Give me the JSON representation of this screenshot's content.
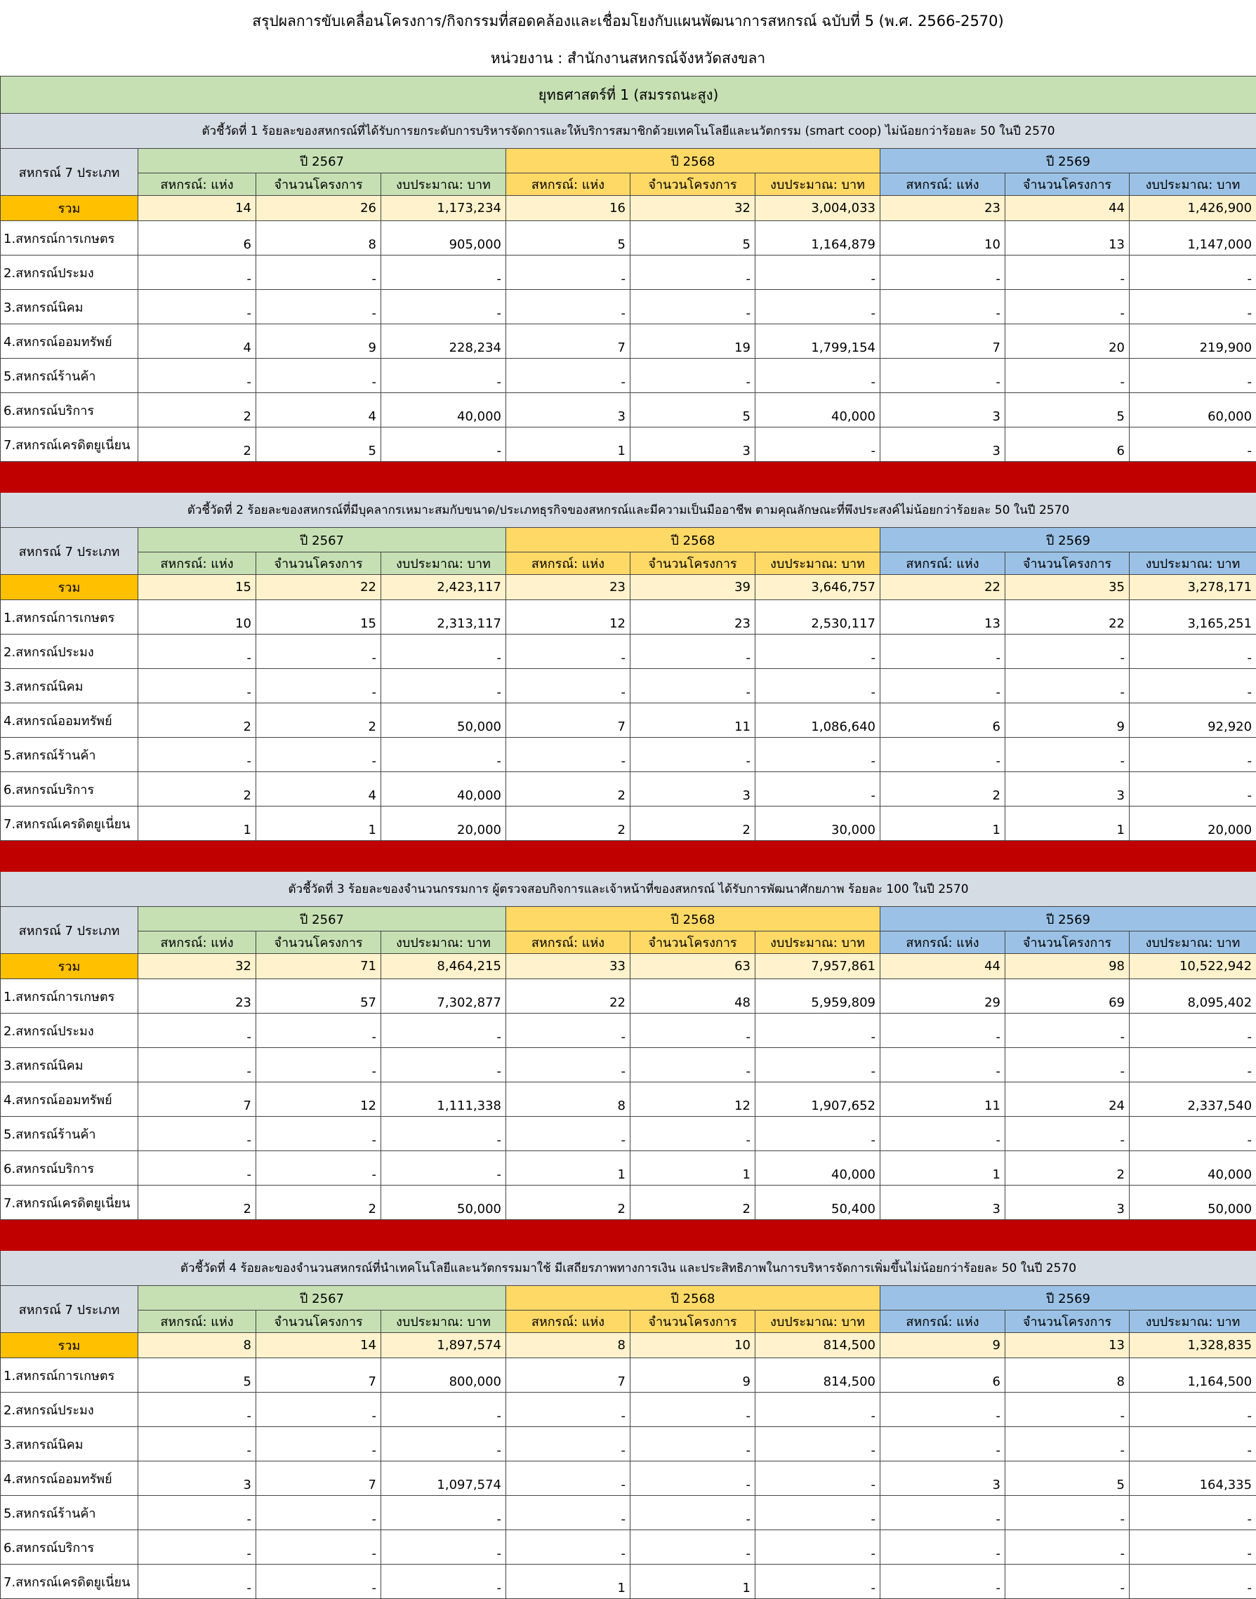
{
  "title": "สรุปผลการขับเคลื่อนโครงการ/กิจกรรมที่สอดคล้องและเชื่อมโยงกับแผนพัฒนาการสหกรณ์ ฉบับที่ 5 (พ.ศ. 2566-2570)",
  "unit": "หน่วยงาน : สำนักงานสหกรณ์จังหวัดสงขลา",
  "strategy": "ยุทธศาสตร์ที่ 1 (สมรรถนะสูง)",
  "sections": [
    {
      "indicator": "ตัวชี้วัดที่ 1 ร้อยละของสหกรณ์ที่ได้รับการยกระดับการบริหารจัดการและให้บริการสมาชิกด้วยเทคโนโลยีและนวัตกรรม (smart coop) ไม่น้อยกว่าร้อยละ 50 ในปี 2570",
      "row_header": "สหกรณ์ 7 ประเภท",
      "years": [
        "ปี 2567",
        "ปี 2568",
        "ปี 2569"
      ],
      "columns": [
        "สหกรณ์: แห่ง",
        "จำนวนโครงการ",
        "งบประมาณ: บาท",
        "สหกรณ์: แห่ง",
        "จำนวนโครงการ",
        "งบประมาณ: บาท",
        "สหกรณ์: แห่ง",
        "จำนวนโครงการ",
        "งบประมาณ: บาท"
      ],
      "rows": [
        [
          "รวม",
          "14",
          "26",
          "1,173,234",
          "16",
          "32",
          "3,004,033",
          "23",
          "44",
          "1,426,900"
        ],
        [
          "1.สหกรณ์การเกษตร",
          "6",
          "8",
          "905,000",
          "5",
          "5",
          "1,164,879",
          "10",
          "13",
          "1,147,000"
        ],
        [
          "2.สหกรณ์ประมง",
          "-",
          "-",
          "-",
          "-",
          "-",
          "-",
          "-",
          "-",
          "-"
        ],
        [
          "3.สหกรณ์นิคม",
          "-",
          "-",
          "-",
          "-",
          "-",
          "-",
          "-",
          "-",
          "-"
        ],
        [
          "4.สหกรณ์ออมทรัพย์",
          "4",
          "9",
          "228,234",
          "7",
          "19",
          "1,799,154",
          "7",
          "20",
          "219,900"
        ],
        [
          "5.สหกรณ์ร้านค้า",
          "-",
          "-",
          "-",
          "-",
          "-",
          "-",
          "-",
          "-",
          "-"
        ],
        [
          "6.สหกรณ์บริการ",
          "2",
          "4",
          "40,000",
          "3",
          "5",
          "40,000",
          "3",
          "5",
          "60,000"
        ],
        [
          "7.สหกรณ์เครดิตยูเนี่ยน",
          "2",
          "5",
          "-",
          "1",
          "3",
          "-",
          "3",
          "6",
          "-"
        ]
      ]
    },
    {
      "indicator": "ตัวชี้วัดที่ 2 ร้อยละของสหกรณ์ที่มีบุคลากรเหมาะสมกับขนาด/ประเภทธุรกิจของสหกรณ์และมีความเป็นมืออาชีพ ตามคุณลักษณะที่พึงประสงค์ไม่น้อยกว่าร้อยละ 50 ในปี 2570",
      "row_header": "สหกรณ์ 7 ประเภท",
      "years": [
        "ปี 2567",
        "ปี 2568",
        "ปี 2569"
      ],
      "columns": [
        "สหกรณ์: แห่ง",
        "จำนวนโครงการ",
        "งบประมาณ: บาท",
        "สหกรณ์: แห่ง",
        "จำนวนโครงการ",
        "งบประมาณ: บาท",
        "สหกรณ์: แห่ง",
        "จำนวนโครงการ",
        "งบประมาณ: บาท"
      ],
      "rows": [
        [
          "รวม",
          "15",
          "22",
          "2,423,117",
          "23",
          "39",
          "3,646,757",
          "22",
          "35",
          "3,278,171"
        ],
        [
          "1.สหกรณ์การเกษตร",
          "10",
          "15",
          "2,313,117",
          "12",
          "23",
          "2,530,117",
          "13",
          "22",
          "3,165,251"
        ],
        [
          "2.สหกรณ์ประมง",
          "-",
          "-",
          "-",
          "-",
          "-",
          "-",
          "-",
          "-",
          "-"
        ],
        [
          "3.สหกรณ์นิคม",
          "-",
          "-",
          "-",
          "-",
          "-",
          "-",
          "-",
          "-",
          "-"
        ],
        [
          "4.สหกรณ์ออมทรัพย์",
          "2",
          "2",
          "50,000",
          "7",
          "11",
          "1,086,640",
          "6",
          "9",
          "92,920"
        ],
        [
          "5.สหกรณ์ร้านค้า",
          "-",
          "-",
          "-",
          "-",
          "-",
          "-",
          "-",
          "-",
          "-"
        ],
        [
          "6.สหกรณ์บริการ",
          "2",
          "4",
          "40,000",
          "2",
          "3",
          "-",
          "2",
          "3",
          "-"
        ],
        [
          "7.สหกรณ์เครดิตยูเนี่ยน",
          "1",
          "1",
          "20,000",
          "2",
          "2",
          "30,000",
          "1",
          "1",
          "20,000"
        ]
      ]
    },
    {
      "indicator": "ตัวชี้วัดที่ 3 ร้อยละของจำนวนกรรมการ ผู้ตรวจสอบกิจการและเจ้าหน้าที่ของสหกรณ์ ได้รับการพัฒนาศักยภาพ ร้อยละ 100 ในปี 2570",
      "row_header": "สหกรณ์ 7 ประเภท",
      "years": [
        "ปี 2567",
        "ปี 2568",
        "ปี 2569"
      ],
      "columns": [
        "สหกรณ์: แห่ง",
        "จำนวนโครงการ",
        "งบประมาณ: บาท",
        "สหกรณ์: แห่ง",
        "จำนวนโครงการ",
        "งบประมาณ: บาท",
        "สหกรณ์: แห่ง",
        "จำนวนโครงการ",
        "งบประมาณ: บาท"
      ],
      "rows": [
        [
          "รวม",
          "32",
          "71",
          "8,464,215",
          "33",
          "63",
          "7,957,861",
          "44",
          "98",
          "10,522,942"
        ],
        [
          "1.สหกรณ์การเกษตร",
          "23",
          "57",
          "7,302,877",
          "22",
          "48",
          "5,959,809",
          "29",
          "69",
          "8,095,402"
        ],
        [
          "2.สหกรณ์ประมง",
          "-",
          "-",
          "-",
          "-",
          "-",
          "-",
          "-",
          "-",
          "-"
        ],
        [
          "3.สหกรณ์นิคม",
          "-",
          "-",
          "-",
          "-",
          "-",
          "-",
          "-",
          "-",
          "-"
        ],
        [
          "4.สหกรณ์ออมทรัพย์",
          "7",
          "12",
          "1,111,338",
          "8",
          "12",
          "1,907,652",
          "11",
          "24",
          "2,337,540"
        ],
        [
          "5.สหกรณ์ร้านค้า",
          "-",
          "-",
          "-",
          "-",
          "-",
          "-",
          "-",
          "-",
          "-"
        ],
        [
          "6.สหกรณ์บริการ",
          "-",
          "-",
          "-",
          "1",
          "1",
          "40,000",
          "1",
          "2",
          "40,000"
        ],
        [
          "7.สหกรณ์เครดิตยูเนี่ยน",
          "2",
          "2",
          "50,000",
          "2",
          "2",
          "50,400",
          "3",
          "3",
          "50,000"
        ]
      ]
    },
    {
      "indicator": "ตัวชี้วัดที่ 4 ร้อยละของจำนวนสหกรณ์ที่นำเทคโนโลยีและนวัตกรรมมาใช้ มีเสถียรภาพทางการเงิน และประสิทธิภาพในการบริหารจัดการเพิ่มขึ้นไม่น้อยกว่าร้อยละ 50 ในปี 2570",
      "row_header": "สหกรณ์ 7 ประเภท",
      "years": [
        "ปี 2567",
        "ปี 2568",
        "ปี 2569"
      ],
      "columns": [
        "สหกรณ์: แห่ง",
        "จำนวนโครงการ",
        "งบประมาณ: บาท",
        "สหกรณ์: แห่ง",
        "จำนวนโครงการ",
        "งบประมาณ: บาท",
        "สหกรณ์: แห่ง",
        "จำนวนโครงการ",
        "งบประมาณ: บาท"
      ],
      "rows": [
        [
          "รวม",
          "8",
          "14",
          "1,897,574",
          "8",
          "10",
          "814,500",
          "9",
          "13",
          "1,328,835"
        ],
        [
          "1.สหกรณ์การเกษตร",
          "5",
          "7",
          "800,000",
          "7",
          "9",
          "814,500",
          "6",
          "8",
          "1,164,500"
        ],
        [
          "2.สหกรณ์ประมง",
          "-",
          "-",
          "-",
          "-",
          "-",
          "-",
          "-",
          "-",
          "-"
        ],
        [
          "3.สหกรณ์นิคม",
          "-",
          "-",
          "-",
          "-",
          "-",
          "-",
          "-",
          "-",
          "-"
        ],
        [
          "4.สหกรณ์ออมทรัพย์",
          "3",
          "7",
          "1,097,574",
          "-",
          "-",
          "-",
          "3",
          "5",
          "164,335"
        ],
        [
          "5.สหกรณ์ร้านค้า",
          "-",
          "-",
          "-",
          "-",
          "-",
          "-",
          "-",
          "-",
          "-"
        ],
        [
          "6.สหกรณ์บริการ",
          "-",
          "-",
          "-",
          "-",
          "-",
          "-",
          "-",
          "-",
          "-"
        ],
        [
          "7.สหกรณ์เครดิตยูเนี่ยน",
          "-",
          "-",
          "-",
          "1",
          "1",
          "-",
          "-",
          "-",
          "-"
        ]
      ]
    }
  ]
}
